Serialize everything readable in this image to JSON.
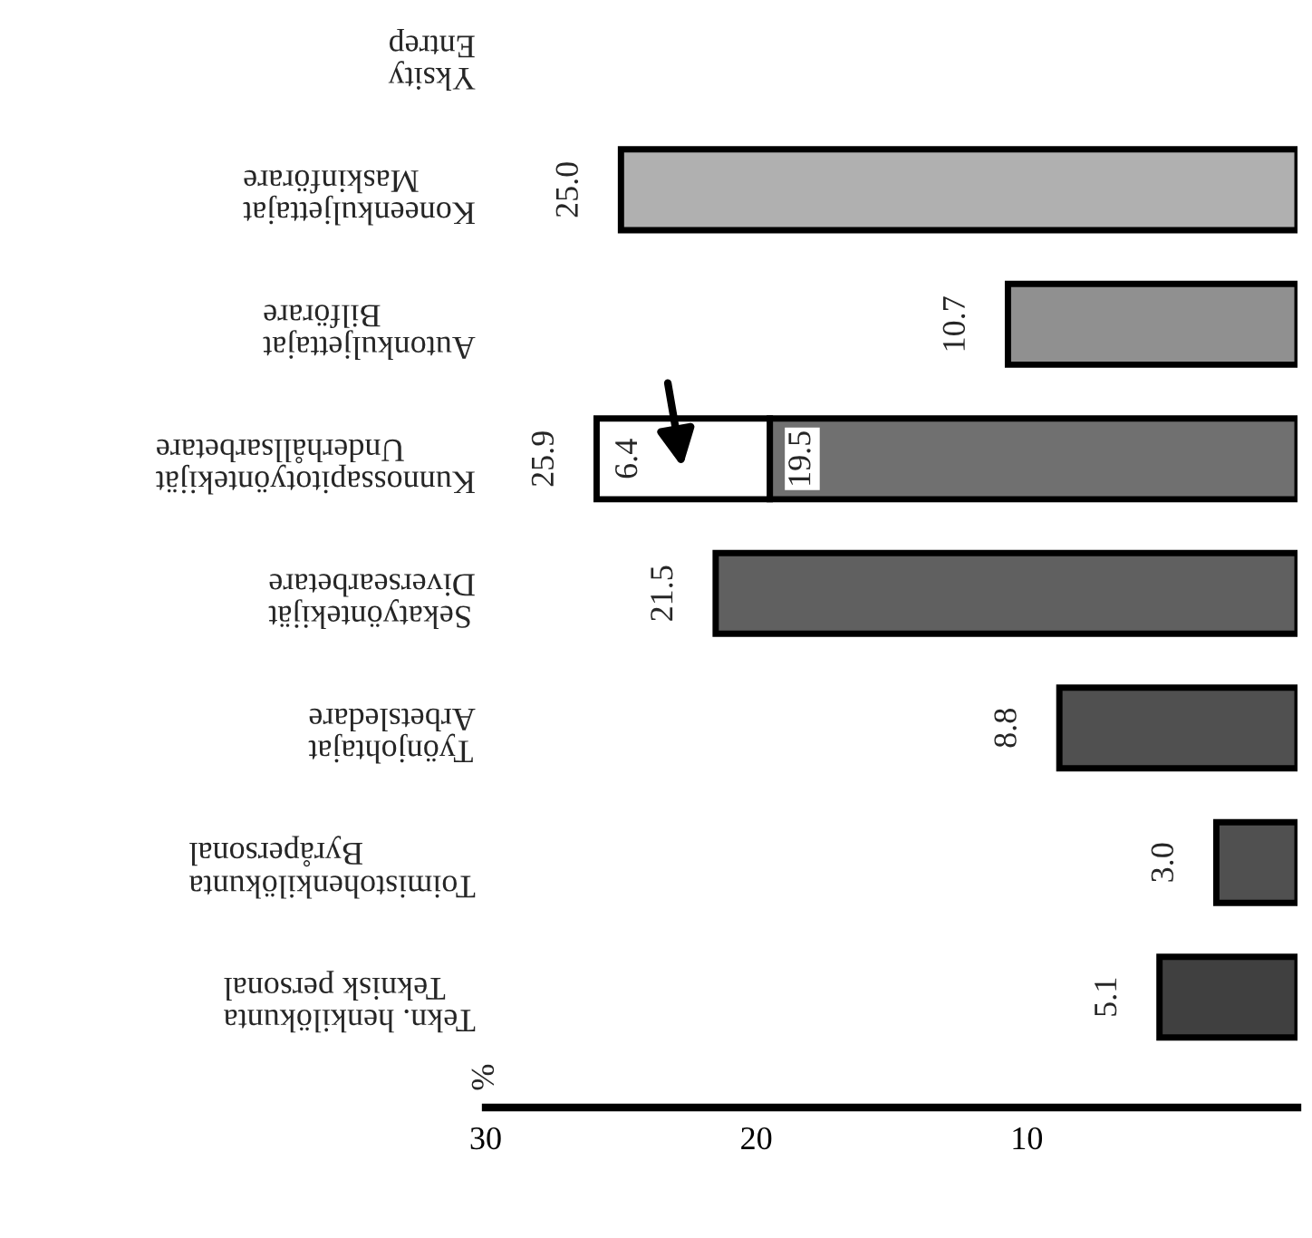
{
  "chart_data": {
    "type": "bar",
    "orientation": "horizontal",
    "stacked": true,
    "categories": [
      "Yksity\nEntrep",
      "Koneenkuljettajat\nMaskinförare",
      "Autonkuljettajat\nBilförare",
      "Kunnossapitotyöntekijät\nUnderhållsarbetare",
      "Sekatyöntekijät\nDiversearbetare",
      "Työnjohtajat\nArbetsledare",
      "Toimistohenkilökunta\nByråpersonal",
      "Tekn. henkilökunta\nTeknisk personal"
    ],
    "series": [
      {
        "colors": [
          null,
          "#b0b0b0",
          "#909090",
          "#707070",
          "#606060",
          "#505050",
          "#505050",
          "#404040"
        ],
        "values": [
          null,
          25.0,
          10.7,
          19.5,
          21.5,
          8.8,
          3.0,
          5.1
        ],
        "value_labels": [
          null,
          "25.0",
          "10.7",
          "19.5",
          "21.5",
          "8.8",
          "3.0",
          "5.1"
        ]
      },
      {
        "color": "#ffffff",
        "values": [
          null,
          null,
          null,
          6.4,
          null,
          null,
          null,
          null
        ],
        "value_labels": [
          null,
          null,
          null,
          "6.4",
          null,
          null,
          null,
          null
        ]
      }
    ],
    "totals": [
      null,
      null,
      null,
      "25.9",
      null,
      null,
      null,
      null
    ],
    "annotations": [
      "%"
    ],
    "xlim": [
      30,
      0
    ],
    "xticks": [
      30,
      20,
      10
    ],
    "grid": false
  }
}
